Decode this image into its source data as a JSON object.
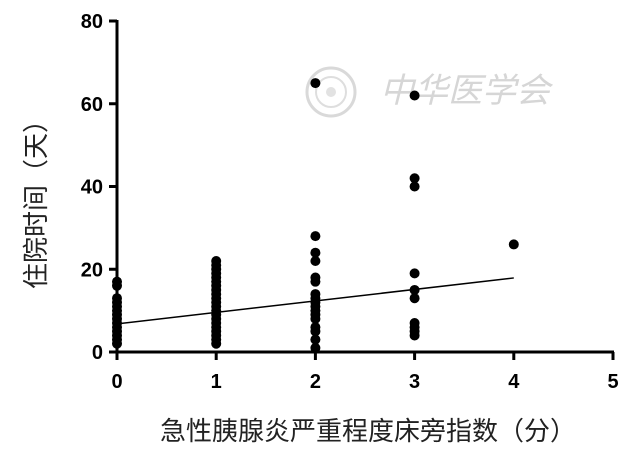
{
  "chart_data": {
    "type": "scatter",
    "title": "",
    "xlabel": "急性胰腺炎严重程度床旁指数（分）",
    "ylabel": "住院时间（天）",
    "xlim": [
      0,
      5
    ],
    "ylim": [
      0,
      80
    ],
    "x_ticks": [
      "0",
      "1",
      "2",
      "3",
      "4",
      "5"
    ],
    "y_ticks": [
      "0",
      "20",
      "40",
      "60",
      "80"
    ],
    "grid": false,
    "legend": "none",
    "points": [
      {
        "x": 0,
        "y": 2
      },
      {
        "x": 0,
        "y": 3
      },
      {
        "x": 0,
        "y": 4
      },
      {
        "x": 0,
        "y": 5
      },
      {
        "x": 0,
        "y": 6
      },
      {
        "x": 0,
        "y": 7
      },
      {
        "x": 0,
        "y": 8
      },
      {
        "x": 0,
        "y": 9
      },
      {
        "x": 0,
        "y": 10
      },
      {
        "x": 0,
        "y": 11
      },
      {
        "x": 0,
        "y": 12
      },
      {
        "x": 0,
        "y": 13
      },
      {
        "x": 0,
        "y": 16
      },
      {
        "x": 0,
        "y": 17
      },
      {
        "x": 1,
        "y": 2
      },
      {
        "x": 1,
        "y": 3
      },
      {
        "x": 1,
        "y": 4
      },
      {
        "x": 1,
        "y": 5
      },
      {
        "x": 1,
        "y": 6
      },
      {
        "x": 1,
        "y": 7
      },
      {
        "x": 1,
        "y": 8
      },
      {
        "x": 1,
        "y": 9
      },
      {
        "x": 1,
        "y": 10
      },
      {
        "x": 1,
        "y": 11
      },
      {
        "x": 1,
        "y": 12
      },
      {
        "x": 1,
        "y": 13
      },
      {
        "x": 1,
        "y": 14
      },
      {
        "x": 1,
        "y": 15
      },
      {
        "x": 1,
        "y": 16
      },
      {
        "x": 1,
        "y": 17
      },
      {
        "x": 1,
        "y": 18
      },
      {
        "x": 1,
        "y": 19
      },
      {
        "x": 1,
        "y": 20
      },
      {
        "x": 1,
        "y": 21
      },
      {
        "x": 1,
        "y": 22
      },
      {
        "x": 2,
        "y": 1
      },
      {
        "x": 2,
        "y": 3
      },
      {
        "x": 2,
        "y": 5
      },
      {
        "x": 2,
        "y": 6
      },
      {
        "x": 2,
        "y": 8
      },
      {
        "x": 2,
        "y": 9
      },
      {
        "x": 2,
        "y": 10
      },
      {
        "x": 2,
        "y": 11
      },
      {
        "x": 2,
        "y": 12
      },
      {
        "x": 2,
        "y": 13
      },
      {
        "x": 2,
        "y": 14
      },
      {
        "x": 2,
        "y": 17
      },
      {
        "x": 2,
        "y": 18
      },
      {
        "x": 2,
        "y": 22
      },
      {
        "x": 2,
        "y": 24
      },
      {
        "x": 2,
        "y": 28
      },
      {
        "x": 2,
        "y": 65
      },
      {
        "x": 3,
        "y": 4
      },
      {
        "x": 3,
        "y": 5
      },
      {
        "x": 3,
        "y": 6
      },
      {
        "x": 3,
        "y": 7
      },
      {
        "x": 3,
        "y": 13
      },
      {
        "x": 3,
        "y": 15
      },
      {
        "x": 3,
        "y": 19
      },
      {
        "x": 3,
        "y": 40
      },
      {
        "x": 3,
        "y": 42
      },
      {
        "x": 3,
        "y": 62
      },
      {
        "x": 4,
        "y": 26
      }
    ],
    "trendline": {
      "x": [
        0,
        4
      ],
      "y": [
        6.8,
        17.9
      ]
    },
    "watermark": "中华医学会",
    "colors": {
      "points": "#000000",
      "axes": "#000000",
      "watermark": "#d6d6d6"
    }
  }
}
